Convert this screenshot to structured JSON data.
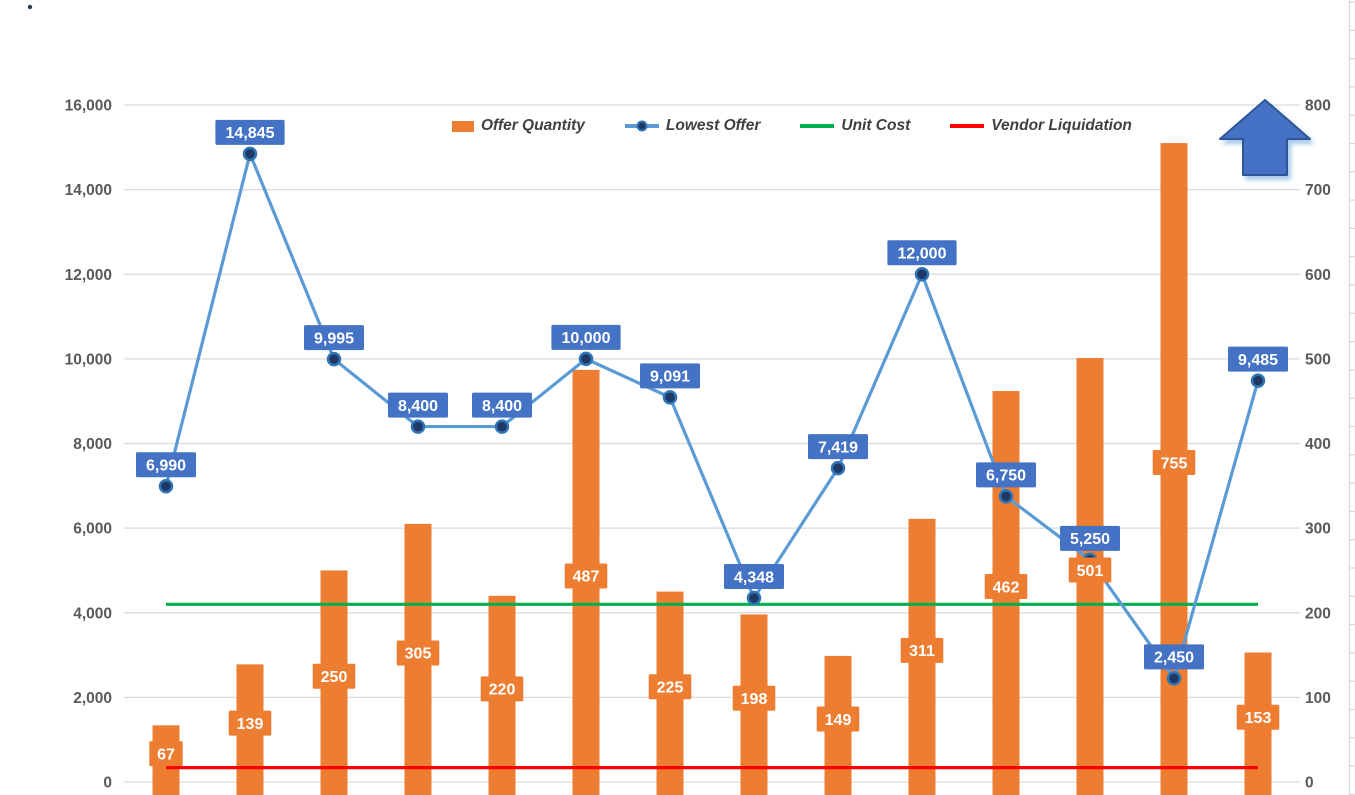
{
  "chart_data": {
    "type": "combo",
    "title": "",
    "background": "#FFFFFF",
    "gridline_color": "#D9D9D9",
    "axis_label_color": "#595959",
    "categories": [
      "",
      "",
      "",
      "",
      "",
      "",
      "",
      "",
      "",
      "",
      "",
      "",
      "",
      ""
    ],
    "series": [
      {
        "name": "Offer Quantity",
        "chart_type": "bar",
        "axis": "right",
        "color": "#ED7D31",
        "label_bg": "#ED7D31",
        "label_text_color": "#FFFFFF",
        "values": [
          67,
          139,
          250,
          305,
          220,
          487,
          225,
          198,
          149,
          311,
          462,
          501,
          755,
          153
        ],
        "labels": [
          "67",
          "139",
          "250",
          "305",
          "220",
          "487",
          "225",
          "198",
          "149",
          "311",
          "462",
          "501",
          "755",
          "153"
        ]
      },
      {
        "name": "Lowest Offer",
        "chart_type": "line",
        "axis": "left",
        "color": "#5B9BD5",
        "marker_fill": "#1F3864",
        "marker_stroke": "#2E75B6",
        "label_bg": "#4472C4",
        "label_text_color": "#FFFFFF",
        "values": [
          6990,
          14845,
          9995,
          8400,
          8400,
          10000,
          9091,
          4348,
          7419,
          12000,
          6750,
          5250,
          2450,
          9485
        ],
        "labels": [
          "6,990",
          "14,845",
          "9,995",
          "8,400",
          "8,400",
          "10,000",
          "9,091",
          "4,348",
          "7,419",
          "12,000",
          "6,750",
          "5,250",
          "2,450",
          "9,485"
        ]
      },
      {
        "name": "Unit Cost",
        "chart_type": "line-constant",
        "axis": "right",
        "color": "#00B050",
        "value": 210
      },
      {
        "name": "Vendor Liquidation",
        "chart_type": "line-constant",
        "axis": "right",
        "color": "#FF0000",
        "value": 17
      }
    ],
    "left_axis": {
      "min": 0,
      "max": 16000,
      "step": 2000,
      "tick_labels": [
        "0",
        "2,000",
        "4,000",
        "6,000",
        "8,000",
        "10,000",
        "12,000",
        "14,000",
        "16,000"
      ]
    },
    "right_axis": {
      "min": 0,
      "max": 800,
      "step": 100,
      "tick_labels": [
        "0",
        "100",
        "200",
        "300",
        "400",
        "500",
        "600",
        "700",
        "800"
      ]
    },
    "legend": {
      "position": "top"
    },
    "grid": true,
    "annotations": [
      {
        "type": "up-arrow",
        "fill": "#4472C4",
        "border": "#2E5597"
      },
      {
        "type": "speck-dot",
        "fill": "#2B3A55"
      }
    ]
  }
}
